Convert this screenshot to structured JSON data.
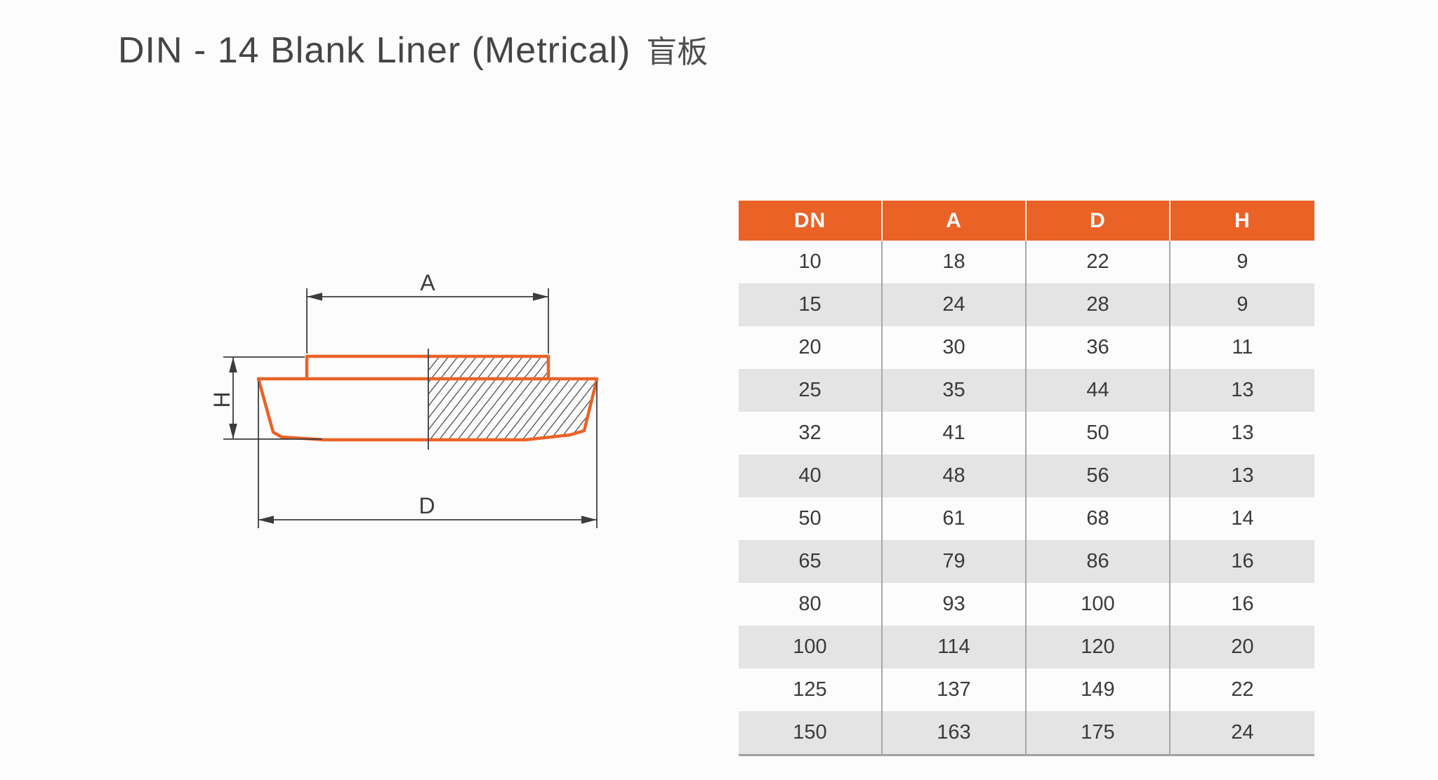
{
  "page": {
    "title": "DIN - 14 Blank Liner (Metrical)",
    "title_suffix_cjk": "盲板",
    "background_color": "#FCFCFC"
  },
  "diagram": {
    "type": "technical-cross-section",
    "description": "Half-section drawing of blank liner, right half hatched",
    "dimension_labels": {
      "top_width": "A",
      "left_height": "H",
      "bottom_diameter": "D"
    },
    "outline_color": "#EB6227",
    "line_color": "#3C3C3C"
  },
  "table": {
    "columns": [
      "DN",
      "A",
      "D",
      "H"
    ],
    "rows": [
      [
        "10",
        "18",
        "22",
        "9"
      ],
      [
        "15",
        "24",
        "28",
        "9"
      ],
      [
        "20",
        "30",
        "36",
        "11"
      ],
      [
        "25",
        "35",
        "44",
        "13"
      ],
      [
        "32",
        "41",
        "50",
        "13"
      ],
      [
        "40",
        "48",
        "56",
        "13"
      ],
      [
        "50",
        "61",
        "68",
        "14"
      ],
      [
        "65",
        "79",
        "86",
        "16"
      ],
      [
        "80",
        "93",
        "100",
        "16"
      ],
      [
        "100",
        "114",
        "120",
        "20"
      ],
      [
        "125",
        "137",
        "149",
        "22"
      ],
      [
        "150",
        "163",
        "175",
        "24"
      ]
    ],
    "header_bg_color": "#EB6227",
    "header_text_color": "#FFFFFF",
    "stripe_color": "#E4E4E4"
  }
}
